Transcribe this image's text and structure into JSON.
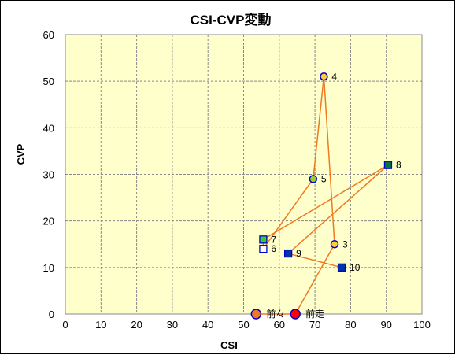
{
  "chart_data": {
    "type": "scatter",
    "title": "CSI-CVP変動",
    "xlabel": "CSI",
    "ylabel": "CVP",
    "xlim": [
      0,
      100
    ],
    "ylim": [
      0,
      60
    ],
    "xticks": [
      "0",
      "10",
      "20",
      "30",
      "40",
      "50",
      "60",
      "70",
      "80",
      "90",
      "100"
    ],
    "yticks": [
      "0",
      "10",
      "20",
      "30",
      "40",
      "50",
      "60"
    ],
    "grid": true,
    "plot_background": "#ffffcc",
    "line_color": "#f07820",
    "points": [
      {
        "label": "前々",
        "x": 53.5,
        "y": 0,
        "marker": "circle",
        "fill": "#f07820",
        "stroke": "#0000cc",
        "size": "large"
      },
      {
        "label": "前走",
        "x": 64.5,
        "y": 0,
        "marker": "circle",
        "fill": "#ff0000",
        "stroke": "#0000cc",
        "size": "large"
      },
      {
        "label": "3",
        "x": 75.5,
        "y": 15,
        "marker": "circle",
        "fill": "#ffcc33",
        "stroke": "#0000cc",
        "size": "small"
      },
      {
        "label": "4",
        "x": 72.5,
        "y": 51,
        "marker": "circle",
        "fill": "#ffcc33",
        "stroke": "#0000cc",
        "size": "small"
      },
      {
        "label": "5",
        "x": 69.5,
        "y": 29,
        "marker": "circle",
        "fill": "#99cc33",
        "stroke": "#0000cc",
        "size": "small"
      },
      {
        "label": "6",
        "x": 55.5,
        "y": 14,
        "marker": "square",
        "fill": "#ffffff",
        "stroke": "#0000cc",
        "size": "small"
      },
      {
        "label": "7",
        "x": 55.5,
        "y": 16,
        "marker": "square",
        "fill": "#33cc33",
        "stroke": "#0000cc",
        "size": "small"
      },
      {
        "label": "8",
        "x": 90.5,
        "y": 32,
        "marker": "square",
        "fill": "#007733",
        "stroke": "#0000cc",
        "size": "small"
      },
      {
        "label": "9",
        "x": 62.5,
        "y": 13,
        "marker": "square",
        "fill": "#0033aa",
        "stroke": "#0000cc",
        "size": "small"
      },
      {
        "label": "10",
        "x": 77.5,
        "y": 10,
        "marker": "square",
        "fill": "#0033aa",
        "stroke": "#0000cc",
        "size": "small"
      }
    ]
  }
}
